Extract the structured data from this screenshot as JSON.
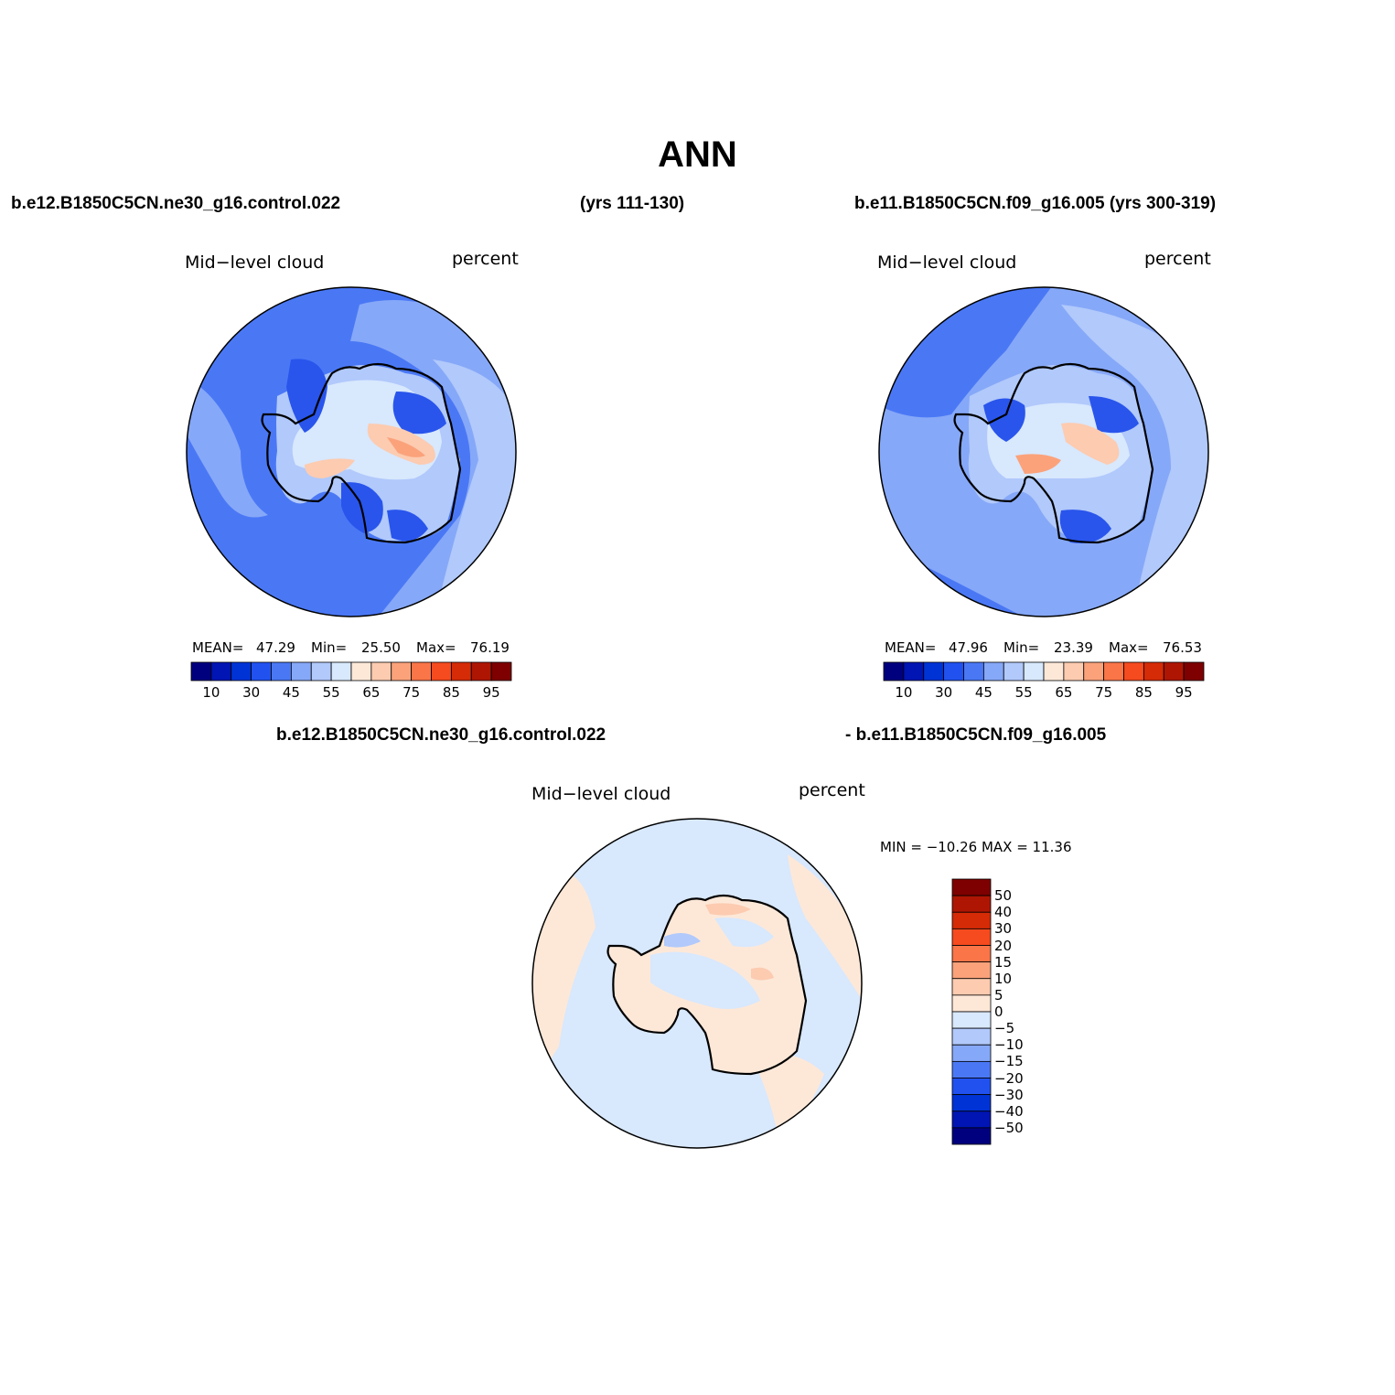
{
  "figure": {
    "title": "ANN",
    "top_left_case": "b.e12.B1850C5CN.ne30_g16.control.022",
    "top_left_years": "(yrs 111-130)",
    "top_right_case": "b.e11.B1850C5CN.f09_g16.005 (yrs 300-319)",
    "diff_case_a": "b.e12.B1850C5CN.ne30_g16.control.022",
    "diff_case_b": "- b.e11.B1850C5CN.f09_g16.005"
  },
  "panels": [
    {
      "variable": "Mid−level cloud",
      "units": "percent",
      "mean_label": "MEAN=",
      "mean": "47.29",
      "min_label": "Min=",
      "min": "25.50",
      "max_label": "Max=",
      "max": "76.19"
    },
    {
      "variable": "Mid−level cloud",
      "units": "percent",
      "mean_label": "MEAN=",
      "mean": "47.96",
      "min_label": "Min=",
      "min": "23.39",
      "max_label": "Max=",
      "max": "76.53"
    },
    {
      "variable": "Mid−level cloud",
      "units": "percent",
      "minmax_text": "MIN = −10.26 MAX =   11.36"
    }
  ],
  "colorbar_abs": {
    "colors": [
      "#00007f",
      "#0015b3",
      "#0033d6",
      "#2152f0",
      "#4a78f5",
      "#86a8f8",
      "#b1c9fb",
      "#d8e8fd",
      "#fde8d8",
      "#fccbb0",
      "#fba27b",
      "#fa7548",
      "#f64a1f",
      "#d52b07",
      "#ae1603",
      "#7e0000"
    ],
    "labels": [
      "10",
      "30",
      "45",
      "55",
      "65",
      "75",
      "85",
      "95"
    ]
  },
  "colorbar_diff": {
    "colors": [
      "#7e0000",
      "#ae1603",
      "#d52b07",
      "#f64a1f",
      "#fa7548",
      "#fba27b",
      "#fccbb0",
      "#fde8d8",
      "#d8e8fd",
      "#b1c9fb",
      "#86a8f8",
      "#4a78f5",
      "#2152f0",
      "#0033d6",
      "#0015b3",
      "#00007f"
    ],
    "labels": [
      "50",
      "40",
      "30",
      "20",
      "15",
      "10",
      "5",
      "0",
      "−5",
      "−10",
      "−15",
      "−20",
      "−30",
      "−40",
      "−50"
    ]
  },
  "map_colors": {
    "dark_blue": "#2955ec",
    "mid_blue": "#4a78f5",
    "light_blue": "#86a8f8",
    "pale_blue": "#b1c9fb",
    "very_pale_blue": "#d8e8fd",
    "pale_orange": "#fde8d8",
    "peach": "#fccbb0",
    "salmon": "#fba27b",
    "coastline": "#000000"
  }
}
